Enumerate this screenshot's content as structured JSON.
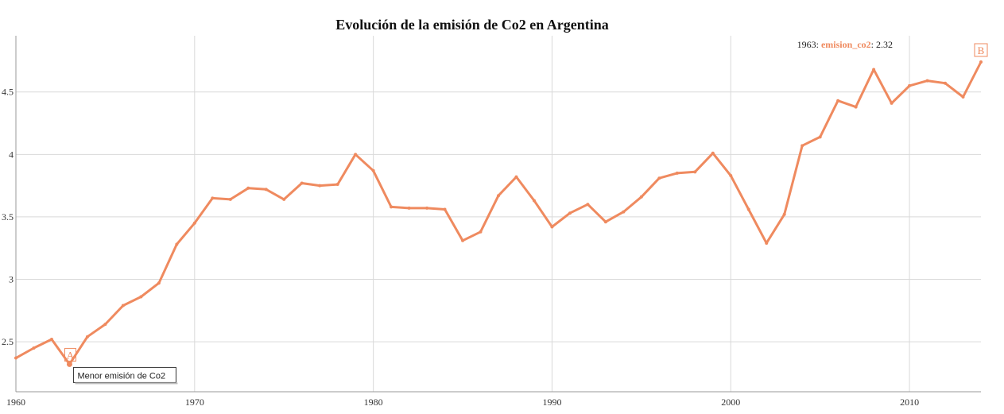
{
  "colors": {
    "series": "#ef8a5f"
  },
  "chart_data": {
    "type": "line",
    "title": "Evolución de la emisión de Co2 en Argentina",
    "xlabel": "",
    "ylabel": "",
    "xlim": [
      1960,
      2014
    ],
    "ylim": [
      2.1,
      4.95
    ],
    "grid": true,
    "x_ticks": [
      "1960",
      "1970",
      "1980",
      "1990",
      "2000",
      "2010"
    ],
    "y_ticks": [
      "2.5",
      "3",
      "3.5",
      "4",
      "4.5"
    ],
    "series": [
      {
        "name": "emision_co2",
        "x": [
          1960,
          1961,
          1962,
          1963,
          1964,
          1965,
          1966,
          1967,
          1968,
          1969,
          1970,
          1971,
          1972,
          1973,
          1974,
          1975,
          1976,
          1977,
          1978,
          1979,
          1980,
          1981,
          1982,
          1983,
          1984,
          1985,
          1986,
          1987,
          1988,
          1989,
          1990,
          1991,
          1992,
          1993,
          1994,
          1995,
          1996,
          1997,
          1998,
          1999,
          2000,
          2001,
          2002,
          2003,
          2004,
          2005,
          2006,
          2007,
          2008,
          2009,
          2010,
          2011,
          2012,
          2013,
          2014
        ],
        "values": [
          2.37,
          2.45,
          2.52,
          2.32,
          2.54,
          2.64,
          2.79,
          2.86,
          2.97,
          3.28,
          3.45,
          3.65,
          3.64,
          3.73,
          3.72,
          3.64,
          3.77,
          3.75,
          3.76,
          4.0,
          3.87,
          3.58,
          3.57,
          3.57,
          3.56,
          3.31,
          3.38,
          3.67,
          3.82,
          3.63,
          3.42,
          3.53,
          3.6,
          3.46,
          3.54,
          3.66,
          3.81,
          3.85,
          3.86,
          4.01,
          3.83,
          3.56,
          3.29,
          3.52,
          4.07,
          4.14,
          4.43,
          4.38,
          4.68,
          4.41,
          4.55,
          4.59,
          4.57,
          4.46,
          4.74
        ]
      }
    ],
    "hover_readout": {
      "year": "1963",
      "series_label": "emision_co2",
      "value": "2.32"
    },
    "annotations": [
      {
        "marker": "A",
        "x": 1963,
        "y": 2.32,
        "text": "Menor emisión de Co2"
      },
      {
        "marker": "B",
        "x": 2014,
        "y": 4.74,
        "text": ""
      }
    ]
  }
}
